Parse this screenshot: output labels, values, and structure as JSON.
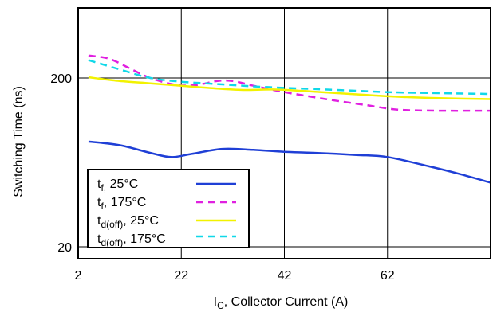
{
  "chart_data": {
    "type": "line",
    "xlabel": {
      "main": "I",
      "sub": "C",
      "rest": ", Collector Current (A)"
    },
    "ylabel": "Switching Time (ns)",
    "xlim": [
      2,
      82
    ],
    "ylim": [
      17,
      520
    ],
    "yscale": "log",
    "x_ticks": [
      "2",
      "22",
      "42",
      "62"
    ],
    "x_tick_values": [
      2,
      22,
      42,
      62
    ],
    "y_ticks": [
      "200",
      "20"
    ],
    "y_tick_values": [
      200,
      20
    ],
    "grid": true,
    "legend_position": "bottom-left",
    "series": [
      {
        "key": "tf25",
        "label_main": "t",
        "label_sub": "f,",
        "label_rest": " 25°C",
        "color": "#1f3fd6",
        "dash": "solid",
        "x": [
          4,
          10,
          16,
          20,
          24,
          30,
          36,
          42,
          48,
          56,
          62,
          70,
          76,
          82
        ],
        "y": [
          84,
          80,
          72,
          68,
          71,
          76,
          75,
          73,
          72,
          70,
          68,
          60,
          54,
          48
        ]
      },
      {
        "key": "tf175",
        "label_main": "t",
        "label_sub": "f",
        "label_rest": ", 175°C",
        "color": "#e020e0",
        "dash": "dashed",
        "x": [
          4,
          8,
          12,
          16,
          21,
          25,
          29,
          32,
          36,
          42,
          50,
          58,
          64,
          72,
          82
        ],
        "y": [
          272,
          260,
          228,
          200,
          182,
          182,
          192,
          192,
          180,
          165,
          150,
          138,
          130,
          128,
          128
        ]
      },
      {
        "key": "td25",
        "label_main": "t",
        "label_sub": "d(off)",
        "label_rest": ", 25°C",
        "color": "#f2f200",
        "dash": "solid",
        "x": [
          4,
          10,
          16,
          22,
          28,
          34,
          40,
          48,
          56,
          64,
          72,
          82
        ],
        "y": [
          202,
          192,
          186,
          180,
          174,
          170,
          171,
          166,
          160,
          155,
          152,
          150
        ]
      },
      {
        "key": "td175",
        "label_main": "t",
        "label_sub": "d(off)",
        "label_rest": ", 175°C",
        "color": "#10d8e8",
        "dash": "dashed",
        "x": [
          4,
          10,
          16,
          22,
          28,
          34,
          40,
          48,
          56,
          62,
          70,
          82
        ],
        "y": [
          255,
          225,
          200,
          190,
          185,
          180,
          176,
          172,
          168,
          165,
          163,
          161
        ]
      }
    ]
  }
}
